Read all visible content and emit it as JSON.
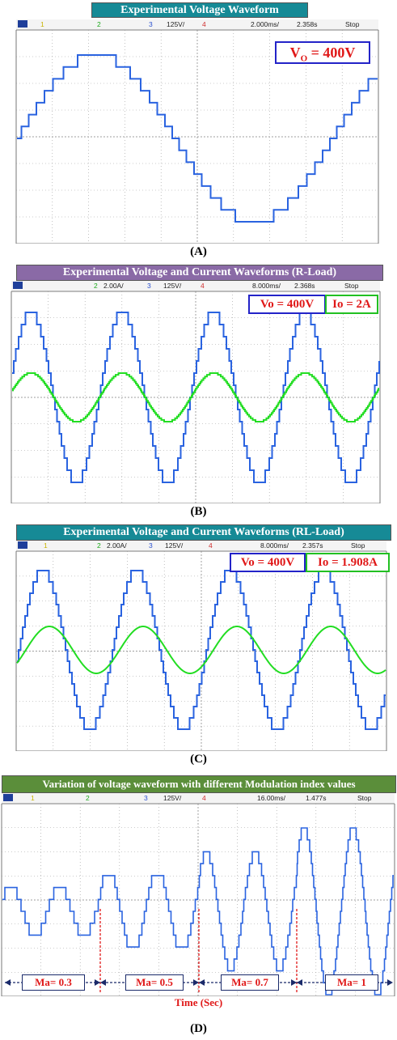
{
  "panels": [
    {
      "banner": "Experimental Voltage Waveform",
      "status": {
        "ch1": "1",
        "ch2": "2",
        "ch3": "3",
        "ch3_scale": "125V/",
        "ch4": "4",
        "timebase": "2.000ms/",
        "trig_time": "2.358s",
        "state": "Stop"
      },
      "caption": "(A)",
      "labels": {
        "vo": "V",
        "vo_sub": "O",
        "vo_val": " = 400V"
      }
    },
    {
      "banner": "Experimental Voltage and Current Waveforms (R-Load)",
      "status": {
        "ch2": "2",
        "ch2_scale": "2.00A/",
        "ch3": "3",
        "ch3_scale": "125V/",
        "ch4": "4",
        "timebase": "8.000ms/",
        "trig_time": "2.368s",
        "state": "Stop"
      },
      "caption": "(B)",
      "labels": {
        "vo": "Vo = 400V",
        "io": "Io = 2A"
      }
    },
    {
      "banner": "Experimental Voltage and Current Waveforms (RL-Load)",
      "status": {
        "ch1": "1",
        "ch2": "2",
        "ch2_scale": "2.00A/",
        "ch3": "3",
        "ch3_scale": "125V/",
        "ch4": "4",
        "timebase": "8.000ms/",
        "trig_time": "2.357s",
        "state": "Stop"
      },
      "caption": "(C)",
      "labels": {
        "vo": "Vo = 400V",
        "io": "Io = 1.908A"
      }
    },
    {
      "banner": "Variation of voltage waveform with different Modulation index values",
      "status": {
        "ch1": "1",
        "ch2": "2",
        "ch3": "3",
        "ch3_scale": "125V/",
        "ch4": "4",
        "timebase": "16.00ms/",
        "trig_time": "1.477s",
        "state": "Stop"
      },
      "caption": "(D)",
      "ma_labels": [
        "Ma= 0.3",
        "Ma= 0.5",
        "Ma= 0.7",
        "Ma= 1"
      ],
      "time_label": "Time (Sec)"
    }
  ],
  "colors": {
    "voltage": "#2a63e0",
    "current": "#22dd22",
    "banner_teal": "#168a96",
    "banner_purple": "#8a6aa6",
    "banner_green": "#5b8e3a",
    "grid": "#9a9a9a",
    "marker": "#e01818"
  },
  "chart_data": [
    {
      "type": "line",
      "title": "Experimental Voltage Waveform",
      "timebase": "2.000ms/",
      "vertical_scale": "125V/",
      "series": [
        {
          "name": "Vo",
          "waveform": "staircase-sine",
          "amplitude_V": 400,
          "cycles_shown": 1,
          "levels": 15
        }
      ]
    },
    {
      "type": "line",
      "title": "Experimental Voltage and Current Waveforms (R-Load)",
      "timebase": "8.000ms/",
      "series": [
        {
          "name": "Vo",
          "waveform": "staircase-sine",
          "amplitude_V": 400,
          "cycles_shown": 4
        },
        {
          "name": "Io",
          "waveform": "staircase-sine",
          "amplitude_A": 2,
          "cycles_shown": 4
        }
      ]
    },
    {
      "type": "line",
      "title": "Experimental Voltage and Current Waveforms (RL-Load)",
      "timebase": "8.000ms/",
      "series": [
        {
          "name": "Vo",
          "waveform": "staircase-sine",
          "amplitude_V": 400,
          "cycles_shown": 4
        },
        {
          "name": "Io",
          "waveform": "sine",
          "amplitude_A": 1.908,
          "cycles_shown": 4
        }
      ]
    },
    {
      "type": "line",
      "title": "Variation of voltage waveform with different Modulation index values",
      "timebase": "16.00ms/",
      "xlabel": "Time (Sec)",
      "segments": [
        {
          "ma": 0.3,
          "cycles": 2
        },
        {
          "ma": 0.5,
          "cycles": 2
        },
        {
          "ma": 0.7,
          "cycles": 2
        },
        {
          "ma": 1,
          "cycles": 2
        }
      ]
    }
  ]
}
